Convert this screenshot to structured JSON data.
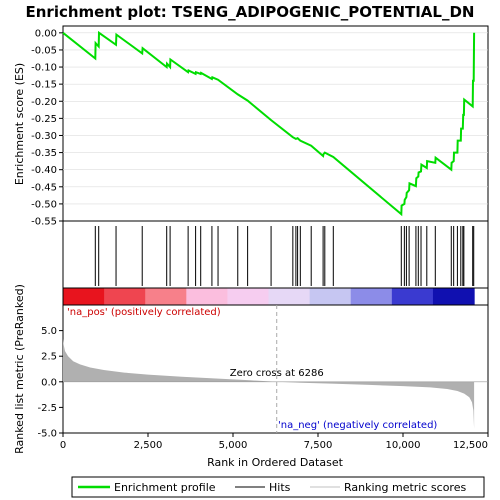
{
  "chart_data": [
    {
      "type": "line",
      "title": "Enrichment plot: TSENG_ADIPOGENIC_POTENTIAL_DN",
      "ylabel": "Enrichment score (ES)",
      "xlim": [
        0,
        12500
      ],
      "ylim": [
        -0.55,
        0.02
      ],
      "y_ticks": [
        "0.00",
        "-0.05",
        "-0.10",
        "-0.15",
        "-0.20",
        "-0.25",
        "-0.30",
        "-0.35",
        "-0.40",
        "-0.45",
        "-0.50",
        "-0.55"
      ],
      "y_tick_values": [
        0,
        -0.05,
        -0.1,
        -0.15,
        -0.2,
        -0.25,
        -0.3,
        -0.35,
        -0.4,
        -0.45,
        -0.5,
        -0.55
      ],
      "series": [
        {
          "name": "Enrichment profile",
          "color": "#00dd00",
          "points": [
            [
              0,
              0
            ],
            [
              950,
              -0.075
            ],
            [
              960,
              -0.03
            ],
            [
              1050,
              -0.04
            ],
            [
              1060,
              0.0
            ],
            [
              1560,
              -0.035
            ],
            [
              1570,
              -0.005
            ],
            [
              2330,
              -0.06
            ],
            [
              2340,
              -0.045
            ],
            [
              3050,
              -0.1
            ],
            [
              3060,
              -0.09
            ],
            [
              3150,
              -0.1
            ],
            [
              3160,
              -0.078
            ],
            [
              3680,
              -0.115
            ],
            [
              3690,
              -0.11
            ],
            [
              3900,
              -0.12
            ],
            [
              3910,
              -0.115
            ],
            [
              4050,
              -0.12
            ],
            [
              4060,
              -0.117
            ],
            [
              4380,
              -0.135
            ],
            [
              4390,
              -0.13
            ],
            [
              4560,
              -0.137
            ],
            [
              5140,
              -0.18
            ],
            [
              5430,
              -0.198
            ],
            [
              6120,
              -0.255
            ],
            [
              6760,
              -0.305
            ],
            [
              6850,
              -0.31
            ],
            [
              6900,
              -0.308
            ],
            [
              6980,
              -0.315
            ],
            [
              7300,
              -0.33
            ],
            [
              7650,
              -0.36
            ],
            [
              7660,
              -0.355
            ],
            [
              7700,
              -0.35
            ],
            [
              7950,
              -0.363
            ],
            [
              9950,
              -0.53
            ],
            [
              9960,
              -0.505
            ],
            [
              10040,
              -0.5
            ],
            [
              10050,
              -0.488
            ],
            [
              10100,
              -0.48
            ],
            [
              10110,
              -0.468
            ],
            [
              10180,
              -0.46
            ],
            [
              10190,
              -0.44
            ],
            [
              10380,
              -0.448
            ],
            [
              10390,
              -0.425
            ],
            [
              10450,
              -0.42
            ],
            [
              10460,
              -0.408
            ],
            [
              10530,
              -0.405
            ],
            [
              10540,
              -0.385
            ],
            [
              10700,
              -0.395
            ],
            [
              10710,
              -0.375
            ],
            [
              10950,
              -0.38
            ],
            [
              10960,
              -0.365
            ],
            [
              11420,
              -0.4
            ],
            [
              11430,
              -0.38
            ],
            [
              11490,
              -0.375
            ],
            [
              11500,
              -0.35
            ],
            [
              11600,
              -0.35
            ],
            [
              11610,
              -0.315
            ],
            [
              11700,
              -0.315
            ],
            [
              11710,
              -0.28
            ],
            [
              11760,
              -0.28
            ],
            [
              11770,
              -0.24
            ],
            [
              11790,
              -0.24
            ],
            [
              11800,
              -0.195
            ],
            [
              12050,
              -0.215
            ],
            [
              12060,
              -0.14
            ],
            [
              12080,
              -0.14
            ],
            [
              12090,
              0.0
            ]
          ]
        }
      ],
      "hits": [
        950,
        1050,
        1560,
        2330,
        3050,
        3150,
        3680,
        3900,
        4050,
        4380,
        4560,
        5140,
        5430,
        6120,
        6760,
        6850,
        6900,
        6980,
        7300,
        7650,
        7700,
        7950,
        9950,
        10040,
        10100,
        10180,
        10380,
        10450,
        10530,
        10700,
        10950,
        11420,
        11490,
        11600,
        11700,
        11760,
        11790,
        12050,
        12080
      ]
    },
    {
      "type": "area",
      "ylabel": "Ranked list metric (PreRanked)",
      "xlabel": "Rank in Ordered Dataset",
      "xlim": [
        0,
        12500
      ],
      "ylim": [
        -5.0,
        7.5
      ],
      "x_ticks": [
        "0",
        "2,500",
        "5,000",
        "7,500",
        "10,000",
        "12,500"
      ],
      "x_tick_values": [
        0,
        2500,
        5000,
        7500,
        10000,
        12500
      ],
      "y_ticks": [
        "5.0",
        "2.5",
        "0.0",
        "-2.5",
        "-5.0"
      ],
      "y_tick_values": [
        5,
        2.5,
        0,
        -2.5,
        -5
      ],
      "points": [
        [
          0,
          4.2
        ],
        [
          20,
          3.6
        ],
        [
          60,
          3.0
        ],
        [
          150,
          2.5
        ],
        [
          300,
          2.0
        ],
        [
          500,
          1.7
        ],
        [
          800,
          1.4
        ],
        [
          1200,
          1.15
        ],
        [
          1800,
          0.9
        ],
        [
          2500,
          0.7
        ],
        [
          3500,
          0.5
        ],
        [
          4500,
          0.32
        ],
        [
          5500,
          0.15
        ],
        [
          6286,
          0
        ],
        [
          7000,
          -0.1
        ],
        [
          8000,
          -0.2
        ],
        [
          9000,
          -0.3
        ],
        [
          10000,
          -0.42
        ],
        [
          10800,
          -0.55
        ],
        [
          11300,
          -0.7
        ],
        [
          11600,
          -0.9
        ],
        [
          11800,
          -1.15
        ],
        [
          11950,
          -1.5
        ],
        [
          12030,
          -2.0
        ],
        [
          12070,
          -2.8
        ],
        [
          12090,
          -4.6
        ]
      ],
      "zero_cross_label": "Zero cross at 6286",
      "zero_cross": 6286,
      "pos_label": "'na_pos' (positively correlated)",
      "neg_label": "'na_neg' (negatively correlated)",
      "pos_color": "#cc0000",
      "neg_color": "#0000cc",
      "fill_color": "#b0b0b0"
    }
  ],
  "legend": {
    "items": [
      {
        "label": "Enrichment profile",
        "color": "#00dd00",
        "kind": "thick"
      },
      {
        "label": "Hits",
        "color": "#000000",
        "kind": "thin"
      },
      {
        "label": "Ranking metric scores",
        "color": "#c0c0c0",
        "kind": "thin"
      }
    ]
  },
  "heatmap_colors": [
    "#e8141e",
    "#ef4550",
    "#f7808a",
    "#fbbede",
    "#f6cdf0",
    "#e6d8f6",
    "#c6c6f2",
    "#8c8ce8",
    "#3a3ad0",
    "#1010b0"
  ]
}
